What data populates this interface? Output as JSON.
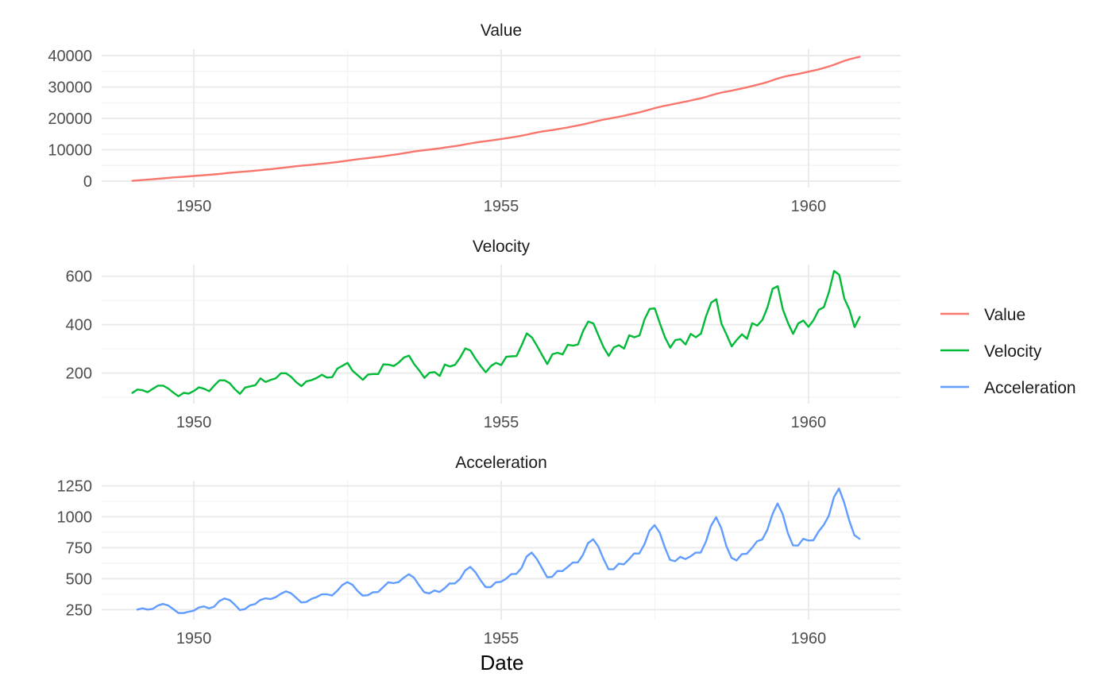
{
  "chart_data": [
    {
      "type": "line",
      "title": "Value",
      "ylim": [
        0,
        40000
      ],
      "yticks": [
        0,
        10000,
        20000,
        30000,
        40000
      ],
      "xticks": [
        1950,
        1955,
        1960
      ],
      "xlim": [
        1948.5,
        1961.5
      ],
      "series": [
        {
          "name": "Value",
          "color": "#F8766D",
          "x_start": 1949.0,
          "x_step": 0.08333,
          "values": [
            112,
            230,
            362,
            491,
            612,
            747,
            895,
            1043,
            1179,
            1298,
            1402,
            1520,
            1635,
            1761,
            1902,
            2037,
            2162,
            2311,
            2481,
            2651,
            2809,
            2942,
            3056,
            3196,
            3341,
            3491,
            3669,
            3827,
            3988,
            4171,
            4370,
            4568,
            4752,
            4910,
            5056,
            5222,
            5393,
            5548,
            5718,
            5899,
            6082,
            6300,
            6530,
            6772,
            6981,
            7175,
            7347,
            7541,
            7737,
            7933,
            8169,
            8404,
            8639,
            8903,
            9167,
            9439,
            9676,
            9877,
            10057,
            10258,
            10462,
            10697,
            10932,
            11167,
            11429,
            11726,
            12028,
            12300,
            12527,
            12731,
            12962,
            13196,
            13438,
            13669,
            13936,
            14205,
            14475,
            14799,
            15163,
            15510,
            15811,
            16048,
            16277,
            16555,
            16839,
            17116,
            17432,
            17749,
            18065,
            18446,
            18858,
            19263,
            19618,
            19889,
            20195,
            20505,
            20845,
            21205,
            21560,
            21923,
            22346,
            22811,
            23278,
            23682,
            24037,
            24342,
            24682,
            25024,
            25342,
            25702,
            26049,
            26412,
            26847,
            27332,
            27821,
            28226,
            28538,
            28848,
            29188,
            29548,
            29904,
            30310,
            30706,
            31125,
            31600,
            32150,
            32709,
            33172,
            33563,
            33853,
            34160,
            34497,
            34881,
            35245,
            35625,
            36086,
            36556,
            37091,
            37713,
            38335,
            38843,
            39233,
            39623
          ]
        }
      ]
    },
    {
      "type": "line",
      "title": "Velocity",
      "ylim": [
        100,
        622
      ],
      "yticks": [
        200,
        400,
        600
      ],
      "xticks": [
        1950,
        1955,
        1960
      ],
      "xlim": [
        1948.5,
        1961.5
      ],
      "series": [
        {
          "name": "Velocity",
          "color": "#00BA38",
          "x_start": 1949.0,
          "x_step": 0.08333,
          "values": [
            118,
            132,
            129,
            121,
            135,
            148,
            148,
            136,
            119,
            104,
            118,
            115,
            126,
            141,
            135,
            125,
            149,
            170,
            170,
            158,
            133,
            114,
            140,
            145,
            150,
            178,
            163,
            172,
            178,
            199,
            199,
            184,
            162,
            146,
            166,
            171,
            180,
            193,
            181,
            183,
            218,
            230,
            242,
            209,
            191,
            172,
            194,
            196,
            196,
            236,
            235,
            229,
            243,
            264,
            272,
            237,
            211,
            180,
            201,
            204,
            188,
            235,
            227,
            234,
            264,
            302,
            293,
            259,
            229,
            203,
            229,
            242,
            233,
            267,
            269,
            270,
            315,
            364,
            347,
            312,
            274,
            237,
            278,
            284,
            277,
            317,
            313,
            318,
            374,
            413,
            405,
            355,
            306,
            271,
            306,
            315,
            301,
            356,
            348,
            355,
            422,
            465,
            467,
            404,
            347,
            305,
            336,
            340,
            318,
            362,
            348,
            363,
            435,
            491,
            505,
            404,
            359,
            310,
            337,
            360,
            342,
            406,
            396,
            420,
            472,
            548,
            559,
            463,
            407,
            362,
            405,
            417,
            391,
            419,
            461,
            472,
            535,
            622,
            606,
            508,
            461,
            390,
            432
          ]
        }
      ]
    },
    {
      "type": "line",
      "title": "Acceleration",
      "ylim": [
        220,
        1240
      ],
      "yticks": [
        250,
        500,
        750,
        1000,
        1250
      ],
      "xticks": [
        1950,
        1955,
        1960
      ],
      "xlim": [
        1948.5,
        1961.5
      ],
      "series": [
        {
          "name": "Acceleration",
          "color": "#619CFF",
          "x_start": 1949.08,
          "x_step": 0.08333,
          "values": [
            250,
            261,
            250,
            256,
            283,
            296,
            284,
            255,
            223,
            222,
            233,
            241,
            267,
            276,
            260,
            274,
            319,
            340,
            328,
            291,
            247,
            254,
            285,
            295,
            328,
            341,
            335,
            350,
            377,
            398,
            383,
            346,
            308,
            312,
            337,
            351,
            373,
            374,
            364,
            401,
            448,
            472,
            451,
            400,
            363,
            366,
            390,
            392,
            432,
            471,
            464,
            472,
            507,
            536,
            509,
            448,
            391,
            381,
            405,
            392,
            423,
            462,
            461,
            498,
            566,
            595,
            552,
            488,
            432,
            432,
            471,
            475,
            500,
            536,
            539,
            585,
            679,
            711,
            659,
            586,
            511,
            515,
            562,
            561,
            594,
            630,
            631,
            692,
            787,
            818,
            760,
            661,
            577,
            577,
            621,
            616,
            657,
            704,
            703,
            777,
            887,
            932,
            871,
            751,
            652,
            641,
            676,
            658,
            680,
            710,
            711,
            798,
            926,
            996,
            909,
            763,
            669,
            647,
            697,
            702,
            748,
            802,
            816,
            892,
            1020,
            1107,
            1022,
            870,
            769,
            767,
            822,
            808,
            810,
            880,
            933,
            1007,
            1157,
            1228,
            1114,
            969,
            851,
            822
          ]
        }
      ]
    }
  ],
  "legend": {
    "position": "right",
    "items": [
      {
        "label": "Value",
        "color": "#F8766D"
      },
      {
        "label": "Velocity",
        "color": "#00BA38"
      },
      {
        "label": "Acceleration",
        "color": "#619CFF"
      }
    ]
  },
  "x_axis_title": "Date",
  "grid": true
}
